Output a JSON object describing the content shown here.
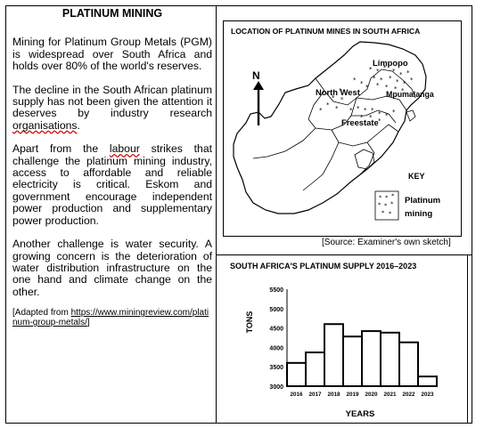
{
  "text": {
    "title": "PLATINUM MINING",
    "p1": "Mining for Platinum Group Metals (PGM) is widespread over South Africa and holds over 80% of the world's reserves.",
    "p2a": "The decline in the South African platinum supply has not been given the attention it deserves by industry research ",
    "p2b": "organisations",
    "p2c": ".",
    "p3a": "Apart from the ",
    "p3b": "labour",
    "p3c": " strikes that challenge the platinum mining industry, access to affordable and reliable electricity is critical. Eskom and government encourage independent power production and supplementary power production.",
    "p4": "Another challenge is water security. A growing concern is the deterioration of water distribution infrastructure on the one hand and climate change on the other.",
    "src_a": "[Adapted from ",
    "src_b": "https://www.miningreview.com/platinum-group-metals/",
    "src_c": "]"
  },
  "map": {
    "title": "LOCATION OF PLATINUM MINES IN SOUTH AFRICA",
    "north": "N",
    "regions": [
      "Limpopo",
      "North West",
      "Mpumalanga",
      "Freestate"
    ],
    "key_title": "KEY",
    "key_label_1": "Platinum",
    "key_label_2": "mining",
    "source": "[Source: Examiner's own sketch]"
  },
  "chart_title": "SOUTH AFRICA'S PLATINUM SUPPLY 2016–2023",
  "chart_data": {
    "type": "bar",
    "categories": [
      "2016",
      "2017",
      "2018",
      "2019",
      "2020",
      "2021",
      "2022",
      "2023"
    ],
    "values": [
      3600,
      3870,
      4600,
      4280,
      4420,
      4380,
      4130,
      3250
    ],
    "xlabel": "YEARS",
    "ylabel": "TONS",
    "ylim": [
      3000,
      5500
    ],
    "yticks": [
      3000,
      3500,
      4000,
      4500,
      5000,
      5500
    ]
  }
}
